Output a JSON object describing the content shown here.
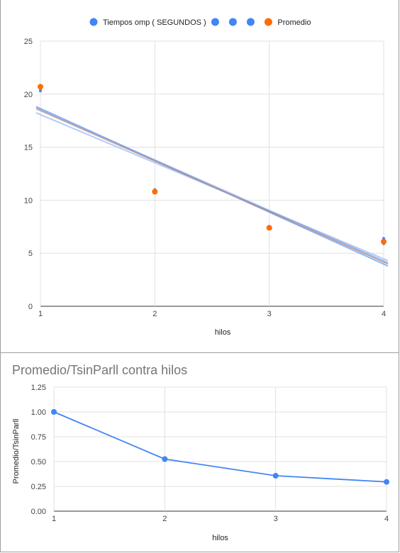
{
  "chart_data": [
    {
      "type": "scatter",
      "title": "",
      "xlabel": "hilos",
      "ylabel": "",
      "xlim": [
        1,
        4
      ],
      "ylim": [
        0,
        25
      ],
      "x_ticks": [
        "1",
        "2",
        "3",
        "4"
      ],
      "y_ticks": [
        "0",
        "5",
        "10",
        "15",
        "20",
        "25"
      ],
      "grid": true,
      "legend_position": "top",
      "legend": [
        {
          "label": "Tiempos omp ( SEGUNDOS )",
          "color": "#4285f4"
        },
        {
          "label": "",
          "color": "#4285f4"
        },
        {
          "label": "",
          "color": "#4285f4"
        },
        {
          "label": "",
          "color": "#4285f4"
        },
        {
          "label": "Promedio",
          "color": "#ff6d01"
        }
      ],
      "series": [
        {
          "name": "Tiempos omp ( SEGUNDOS )",
          "color": "#4285f4",
          "x": [
            1,
            2,
            3,
            4
          ],
          "y": [
            20.3,
            11.0,
            7.4,
            6.4
          ]
        },
        {
          "name": "",
          "color": "#4285f4",
          "x": [
            1,
            2,
            3,
            4
          ],
          "y": [
            20.6,
            10.8,
            7.3,
            5.9
          ]
        },
        {
          "name": "",
          "color": "#4285f4",
          "x": [
            1,
            2,
            3,
            4
          ],
          "y": [
            20.7,
            10.9,
            7.4,
            6.0
          ]
        },
        {
          "name": "",
          "color": "#4285f4",
          "x": [
            1,
            2,
            3,
            4
          ],
          "y": [
            20.5,
            10.7,
            7.3,
            6.1
          ]
        },
        {
          "name": "Promedio",
          "color": "#ff6d01",
          "x": [
            1,
            2,
            3,
            4
          ],
          "y": [
            20.7,
            10.8,
            7.4,
            6.1
          ]
        }
      ],
      "trendlines": [
        {
          "color": "#4285f4",
          "opacity": 0.6,
          "y_start": 18.7,
          "y_end": 3.8
        },
        {
          "color": "#a8c7fa",
          "opacity": 0.9,
          "y_start": 18.1,
          "y_end": 4.3
        },
        {
          "color": "#4285f4",
          "opacity": 0.45,
          "y_start": 18.5,
          "y_end": 4.0
        },
        {
          "color": "#7baaf7",
          "opacity": 0.7,
          "y_start": 18.6,
          "y_end": 4.1
        },
        {
          "color": "#ff6d01",
          "opacity": 0.35,
          "y_start": 18.5,
          "y_end": 4.0
        }
      ]
    },
    {
      "type": "line",
      "title": "Promedio/TsinParll contra hilos",
      "xlabel": "hilos",
      "ylabel": "Promedio/TsinParll",
      "xlim": [
        1,
        4
      ],
      "ylim": [
        0,
        1.25
      ],
      "x_ticks": [
        "1",
        "2",
        "3",
        "4"
      ],
      "y_ticks": [
        "0.00",
        "0.25",
        "0.50",
        "0.75",
        "1.00",
        "1.25"
      ],
      "grid": true,
      "series": [
        {
          "name": "Promedio/TsinParll",
          "color": "#4285f4",
          "x": [
            1,
            2,
            3,
            4
          ],
          "y": [
            1.0,
            0.525,
            0.357,
            0.295
          ]
        }
      ]
    }
  ]
}
